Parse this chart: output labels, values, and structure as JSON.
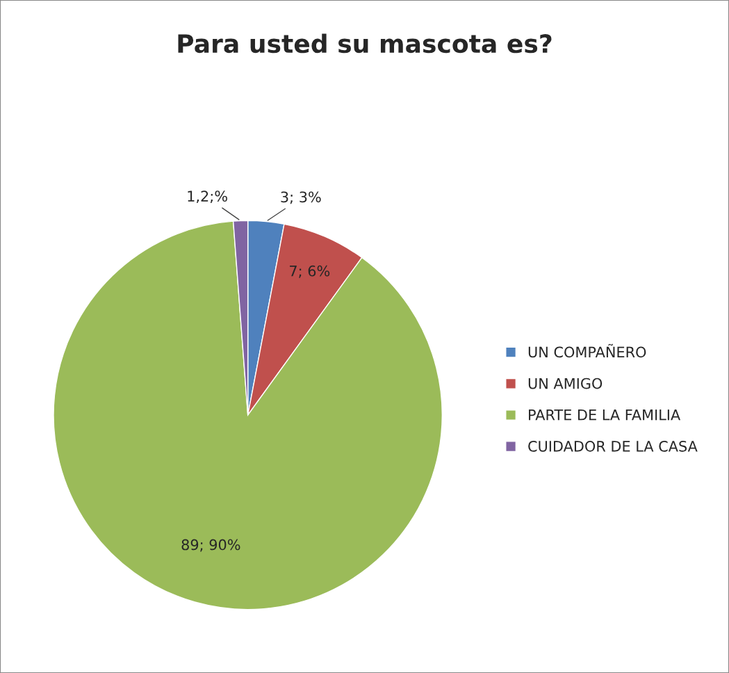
{
  "chart_data": {
    "type": "pie",
    "title": "Para usted su mascota es?",
    "categories": [
      "UN COMPAÑERO",
      "UN AMIGO",
      "PARTE DE LA FAMILIA",
      "CUIDADOR DE LA CASA"
    ],
    "values": [
      3,
      7,
      89,
      1.2
    ],
    "value_labels": [
      "3; 3%",
      "7; 6%",
      "89; 90%",
      "1,2;%"
    ],
    "colors": [
      "#4f81bd",
      "#c0504d",
      "#9bbb59",
      "#8064a2"
    ],
    "legend": "right"
  }
}
